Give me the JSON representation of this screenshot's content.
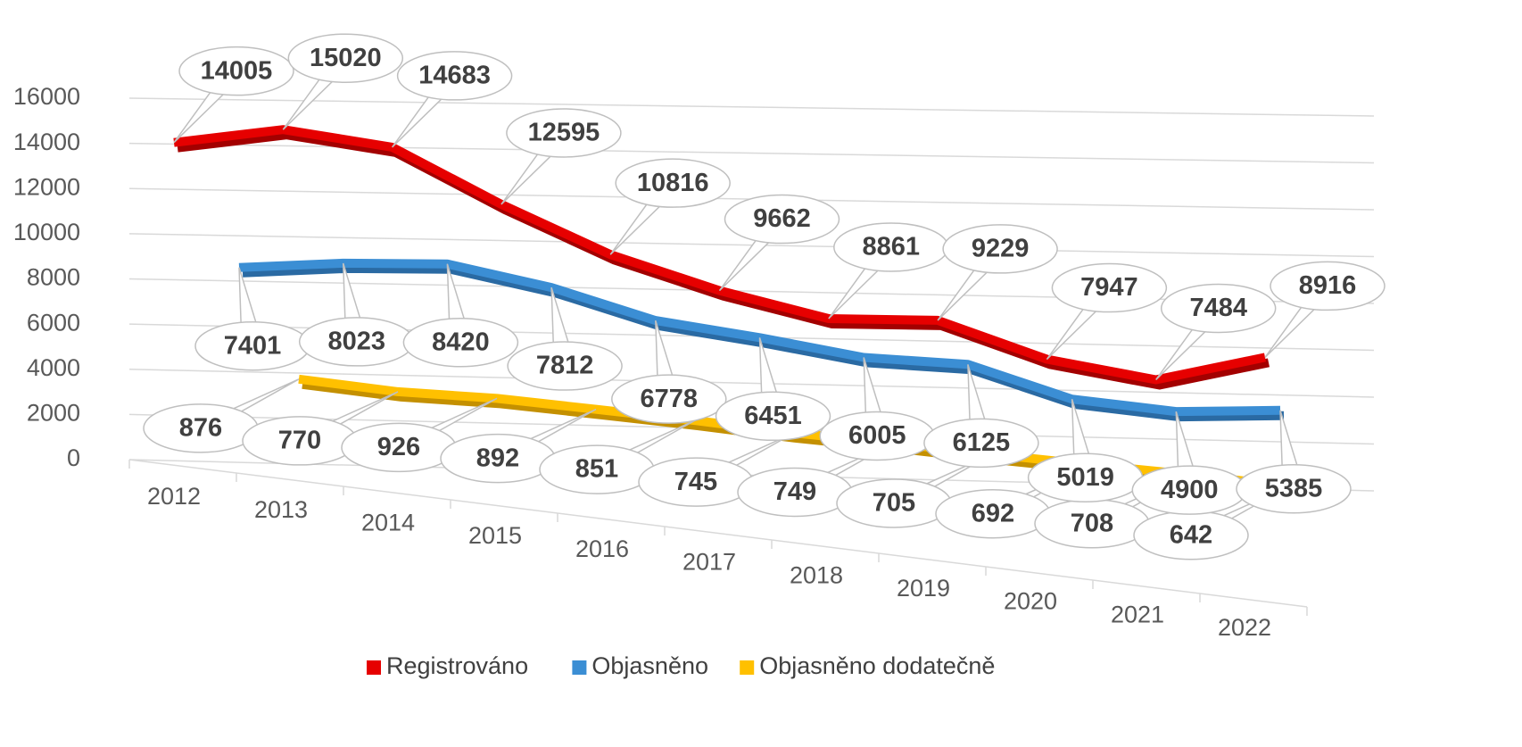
{
  "chart_data": {
    "type": "line3d",
    "categories": [
      "2012",
      "2013",
      "2014",
      "2015",
      "2016",
      "2017",
      "2018",
      "2019",
      "2020",
      "2021",
      "2022"
    ],
    "series": [
      {
        "name": "Registrováno",
        "color": "#e60000",
        "values": [
          14005,
          15020,
          14683,
          12595,
          10816,
          9662,
          8861,
          9229,
          7947,
          7484,
          8916
        ]
      },
      {
        "name": "Objasněno",
        "color": "#3b8ed4",
        "values": [
          7401,
          8023,
          8420,
          7812,
          6778,
          6451,
          6005,
          6125,
          5019,
          4900,
          5385
        ]
      },
      {
        "name": "Objasněno dodatečně",
        "color": "#ffc000",
        "values": [
          876,
          770,
          926,
          892,
          851,
          745,
          749,
          705,
          692,
          708,
          642
        ]
      }
    ],
    "ylim": [
      0,
      16000
    ],
    "yticks": [
      0,
      2000,
      4000,
      6000,
      8000,
      10000,
      12000,
      14000,
      16000
    ],
    "grid": true,
    "legend": "bottom"
  }
}
